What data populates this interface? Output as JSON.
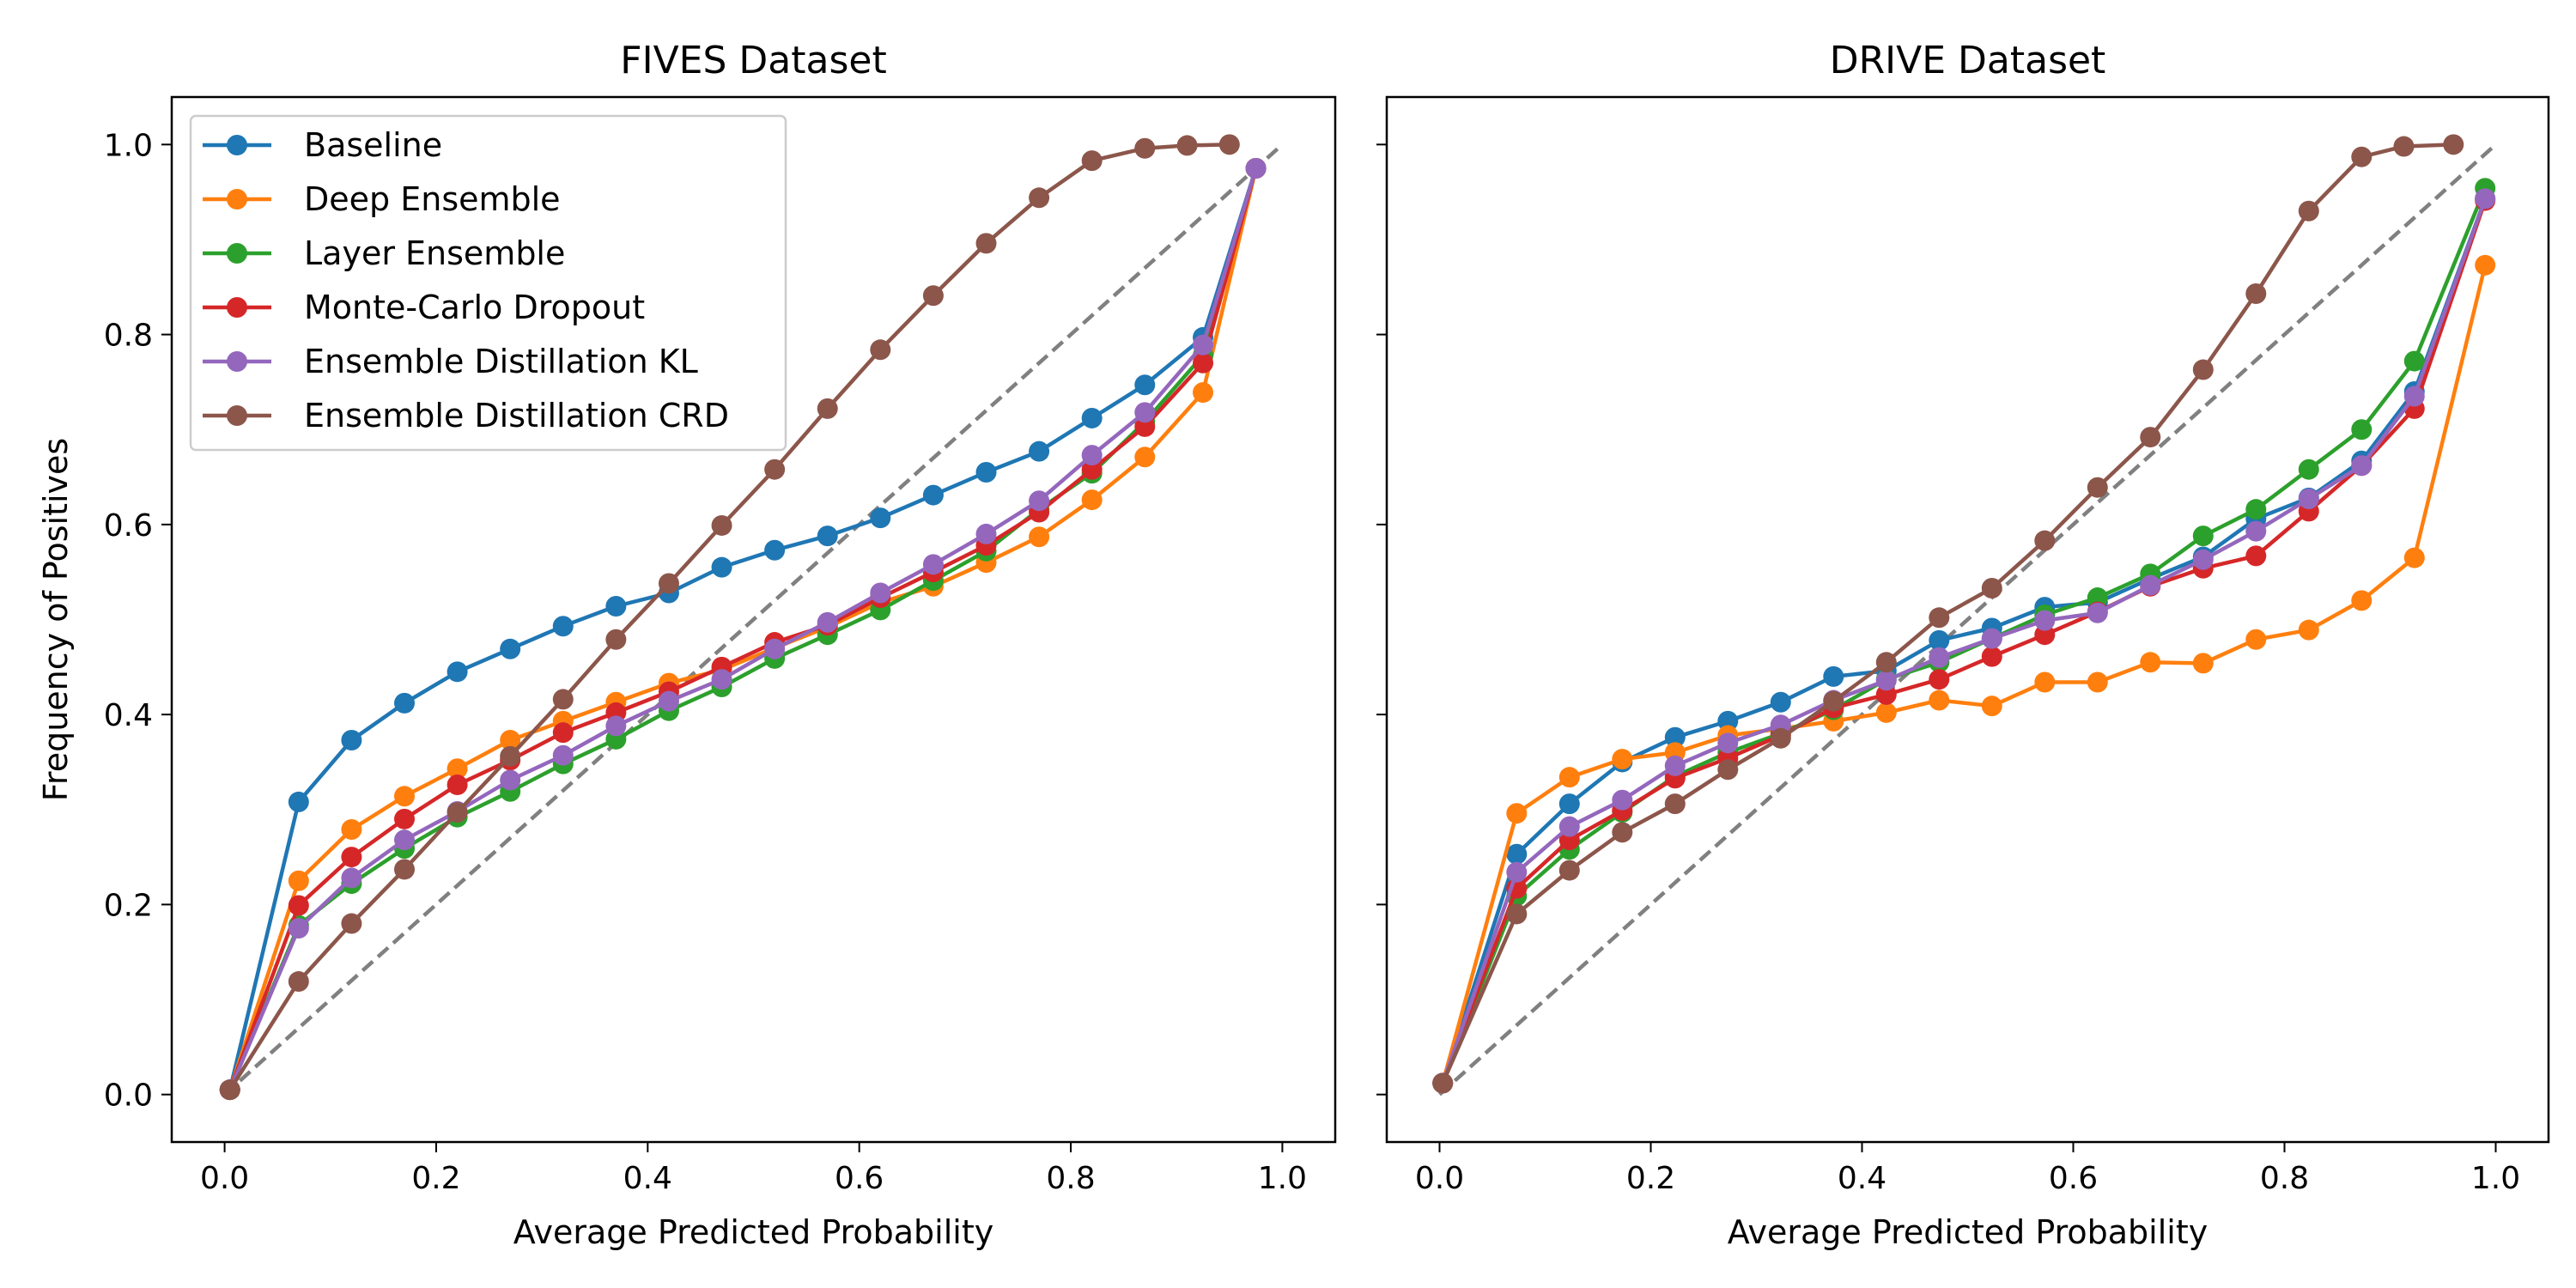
{
  "chart_data": [
    {
      "type": "line",
      "title": "FIVES Dataset",
      "xlabel": "Average Predicted Probability",
      "ylabel": "Frequency of Positives",
      "xlim": [
        -0.05,
        1.05
      ],
      "ylim": [
        -0.05,
        1.05
      ],
      "xticks": [
        "0.0",
        "0.2",
        "0.4",
        "0.6",
        "0.8",
        "1.0"
      ],
      "yticks": [
        "0.0",
        "0.2",
        "0.4",
        "0.6",
        "0.8",
        "1.0"
      ],
      "reference_line": {
        "x": [
          0,
          1
        ],
        "y": [
          0,
          1
        ],
        "style": "dashed",
        "color": "#808080"
      },
      "legend": {
        "location": "upper-left"
      },
      "series": [
        {
          "name": "Baseline",
          "color": "#1f77b4",
          "x": [
            0.005,
            0.07,
            0.12,
            0.17,
            0.22,
            0.27,
            0.32,
            0.37,
            0.42,
            0.47,
            0.52,
            0.57,
            0.62,
            0.67,
            0.72,
            0.77,
            0.82,
            0.87,
            0.925,
            0.975
          ],
          "y": [
            0.005,
            0.308,
            0.373,
            0.412,
            0.445,
            0.469,
            0.493,
            0.514,
            0.528,
            0.555,
            0.573,
            0.588,
            0.607,
            0.631,
            0.655,
            0.677,
            0.712,
            0.747,
            0.797,
            0.975
          ]
        },
        {
          "name": "Deep Ensemble",
          "color": "#ff7f0e",
          "x": [
            0.005,
            0.07,
            0.12,
            0.17,
            0.22,
            0.27,
            0.32,
            0.37,
            0.42,
            0.47,
            0.52,
            0.57,
            0.62,
            0.67,
            0.72,
            0.77,
            0.82,
            0.87,
            0.925,
            0.975
          ],
          "y": [
            0.005,
            0.225,
            0.279,
            0.314,
            0.343,
            0.373,
            0.393,
            0.413,
            0.433,
            0.447,
            0.47,
            0.492,
            0.518,
            0.535,
            0.56,
            0.587,
            0.626,
            0.671,
            0.739,
            0.975
          ]
        },
        {
          "name": "Layer Ensemble",
          "color": "#2ca02c",
          "x": [
            0.005,
            0.07,
            0.12,
            0.17,
            0.22,
            0.27,
            0.32,
            0.37,
            0.42,
            0.47,
            0.52,
            0.57,
            0.62,
            0.67,
            0.72,
            0.77,
            0.82,
            0.87,
            0.925,
            0.975
          ],
          "y": [
            0.005,
            0.178,
            0.222,
            0.259,
            0.292,
            0.319,
            0.348,
            0.374,
            0.404,
            0.429,
            0.459,
            0.484,
            0.51,
            0.541,
            0.572,
            0.616,
            0.654,
            0.708,
            0.778,
            0.975
          ]
        },
        {
          "name": "Monte-Carlo Dropout",
          "color": "#d62728",
          "x": [
            0.005,
            0.07,
            0.12,
            0.17,
            0.22,
            0.27,
            0.32,
            0.37,
            0.42,
            0.47,
            0.52,
            0.57,
            0.62,
            0.67,
            0.72,
            0.77,
            0.82,
            0.87,
            0.925,
            0.975
          ],
          "y": [
            0.005,
            0.199,
            0.25,
            0.29,
            0.326,
            0.352,
            0.381,
            0.402,
            0.424,
            0.45,
            0.476,
            0.494,
            0.523,
            0.55,
            0.578,
            0.613,
            0.658,
            0.703,
            0.77,
            0.975
          ]
        },
        {
          "name": "Ensemble Distillation KL",
          "color": "#9467bd",
          "x": [
            0.005,
            0.07,
            0.12,
            0.17,
            0.22,
            0.27,
            0.32,
            0.37,
            0.42,
            0.47,
            0.52,
            0.57,
            0.62,
            0.67,
            0.72,
            0.77,
            0.82,
            0.87,
            0.925,
            0.975
          ],
          "y": [
            0.005,
            0.175,
            0.228,
            0.268,
            0.298,
            0.331,
            0.357,
            0.388,
            0.414,
            0.437,
            0.469,
            0.497,
            0.528,
            0.558,
            0.59,
            0.625,
            0.673,
            0.718,
            0.789,
            0.975
          ]
        },
        {
          "name": "Ensemble Distillation CRD",
          "color": "#8c564b",
          "x": [
            0.005,
            0.07,
            0.12,
            0.17,
            0.22,
            0.27,
            0.32,
            0.37,
            0.42,
            0.47,
            0.52,
            0.57,
            0.62,
            0.67,
            0.72,
            0.77,
            0.82,
            0.87,
            0.91,
            0.95
          ],
          "y": [
            0.005,
            0.119,
            0.18,
            0.237,
            0.297,
            0.356,
            0.416,
            0.479,
            0.538,
            0.599,
            0.658,
            0.722,
            0.784,
            0.841,
            0.896,
            0.944,
            0.983,
            0.996,
            0.999,
            1.0
          ]
        }
      ]
    },
    {
      "type": "line",
      "title": "DRIVE Dataset",
      "xlabel": "Average Predicted Probability",
      "ylabel": "",
      "xlim": [
        -0.05,
        1.05
      ],
      "ylim": [
        -0.05,
        1.05
      ],
      "xticks": [
        "0.0",
        "0.2",
        "0.4",
        "0.6",
        "0.8",
        "1.0"
      ],
      "yticks": [],
      "reference_line": {
        "x": [
          0,
          1
        ],
        "y": [
          0,
          1
        ],
        "style": "dashed",
        "color": "#808080"
      },
      "series": [
        {
          "name": "Baseline",
          "color": "#1f77b4",
          "x": [
            0.003,
            0.073,
            0.123,
            0.173,
            0.223,
            0.273,
            0.323,
            0.373,
            0.423,
            0.473,
            0.523,
            0.573,
            0.623,
            0.673,
            0.723,
            0.773,
            0.823,
            0.873,
            0.923,
            0.99
          ],
          "y": [
            0.012,
            0.253,
            0.306,
            0.35,
            0.376,
            0.393,
            0.413,
            0.44,
            0.446,
            0.478,
            0.491,
            0.513,
            0.518,
            0.543,
            0.566,
            0.606,
            0.628,
            0.667,
            0.74,
            0.943
          ]
        },
        {
          "name": "Deep Ensemble",
          "color": "#ff7f0e",
          "x": [
            0.003,
            0.073,
            0.123,
            0.173,
            0.223,
            0.273,
            0.323,
            0.373,
            0.423,
            0.473,
            0.523,
            0.573,
            0.623,
            0.673,
            0.723,
            0.773,
            0.823,
            0.873,
            0.923,
            0.99
          ],
          "y": [
            0.012,
            0.296,
            0.334,
            0.353,
            0.36,
            0.378,
            0.385,
            0.393,
            0.402,
            0.415,
            0.409,
            0.434,
            0.434,
            0.455,
            0.454,
            0.479,
            0.489,
            0.52,
            0.565,
            0.873
          ]
        },
        {
          "name": "Layer Ensemble",
          "color": "#2ca02c",
          "x": [
            0.003,
            0.073,
            0.123,
            0.173,
            0.223,
            0.273,
            0.323,
            0.373,
            0.423,
            0.473,
            0.523,
            0.573,
            0.623,
            0.673,
            0.723,
            0.773,
            0.823,
            0.873,
            0.923,
            0.99
          ],
          "y": [
            0.012,
            0.209,
            0.258,
            0.297,
            0.335,
            0.36,
            0.38,
            0.405,
            0.437,
            0.455,
            0.48,
            0.505,
            0.523,
            0.548,
            0.588,
            0.616,
            0.658,
            0.7,
            0.772,
            0.954
          ]
        },
        {
          "name": "Monte-Carlo Dropout",
          "color": "#d62728",
          "x": [
            0.003,
            0.073,
            0.123,
            0.173,
            0.223,
            0.273,
            0.323,
            0.373,
            0.423,
            0.473,
            0.523,
            0.573,
            0.623,
            0.673,
            0.723,
            0.773,
            0.823,
            0.873,
            0.923,
            0.99
          ],
          "y": [
            0.012,
            0.217,
            0.268,
            0.299,
            0.333,
            0.354,
            0.378,
            0.407,
            0.421,
            0.437,
            0.461,
            0.484,
            0.508,
            0.535,
            0.554,
            0.567,
            0.614,
            0.662,
            0.722,
            0.941
          ]
        },
        {
          "name": "Ensemble Distillation KL",
          "color": "#9467bd",
          "x": [
            0.003,
            0.073,
            0.123,
            0.173,
            0.223,
            0.273,
            0.323,
            0.373,
            0.423,
            0.473,
            0.523,
            0.573,
            0.623,
            0.673,
            0.723,
            0.773,
            0.823,
            0.873,
            0.923,
            0.99
          ],
          "y": [
            0.012,
            0.234,
            0.282,
            0.31,
            0.346,
            0.37,
            0.389,
            0.415,
            0.436,
            0.46,
            0.48,
            0.499,
            0.507,
            0.536,
            0.563,
            0.593,
            0.627,
            0.662,
            0.735,
            0.943
          ]
        },
        {
          "name": "Ensemble Distillation CRD",
          "color": "#8c564b",
          "x": [
            0.003,
            0.073,
            0.123,
            0.173,
            0.223,
            0.273,
            0.323,
            0.373,
            0.423,
            0.473,
            0.523,
            0.573,
            0.623,
            0.673,
            0.723,
            0.773,
            0.823,
            0.873,
            0.913,
            0.96
          ],
          "y": [
            0.012,
            0.19,
            0.236,
            0.276,
            0.306,
            0.342,
            0.375,
            0.414,
            0.455,
            0.502,
            0.533,
            0.583,
            0.639,
            0.692,
            0.763,
            0.843,
            0.93,
            0.987,
            0.998,
            1.0
          ]
        }
      ]
    }
  ]
}
